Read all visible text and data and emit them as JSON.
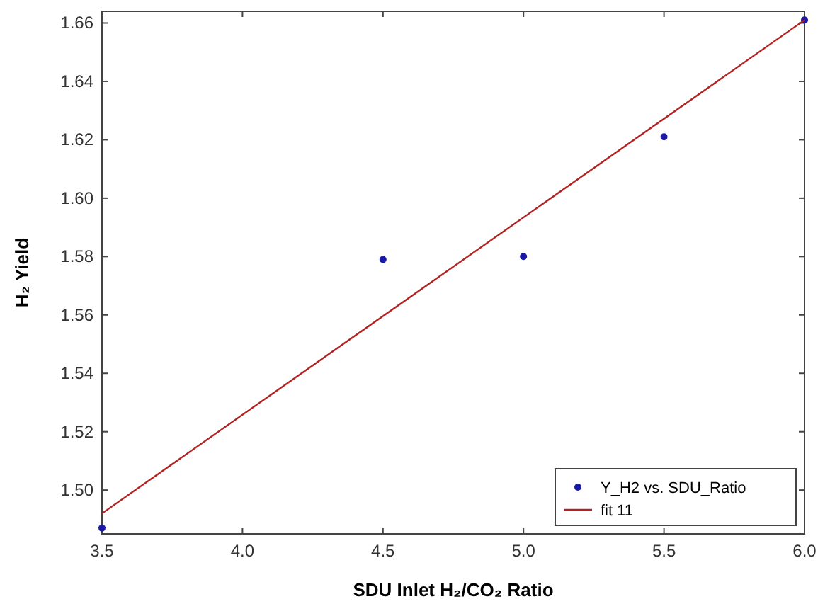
{
  "chart_data": {
    "type": "scatter",
    "xlabel": "SDU Inlet H₂/CO₂ Ratio",
    "ylabel": "H₂ Yield",
    "x": [
      3.5,
      4.5,
      5.0,
      5.5,
      6.0
    ],
    "series": [
      {
        "name": "Y_H2 vs. SDU_Ratio",
        "color": "#1a1aa6",
        "values": [
          1.487,
          1.579,
          1.58,
          1.621,
          1.661
        ],
        "marker": "circle"
      },
      {
        "name": "fit 11",
        "type": "line",
        "color": "#b22222",
        "x": [
          3.5,
          6.0
        ],
        "values": [
          1.492,
          1.661
        ],
        "line_style": "solid"
      }
    ],
    "xlim": [
      3.5,
      6.0
    ],
    "ylim": [
      1.485,
      1.664
    ],
    "xticks": [
      3.5,
      {
        "value": 4,
        "label": "4.0"
      },
      4.5,
      {
        "value": 5,
        "label": "5.0"
      },
      5.5,
      {
        "value": 6,
        "label": "6.0"
      }
    ],
    "yticks": [
      {
        "value": 1.5,
        "label": "1.50"
      },
      1.52,
      1.54,
      1.56,
      1.58,
      {
        "value": 1.6,
        "label": "1.60"
      },
      1.62,
      1.64,
      1.66
    ],
    "grid": false,
    "legend": "bottom right"
  }
}
